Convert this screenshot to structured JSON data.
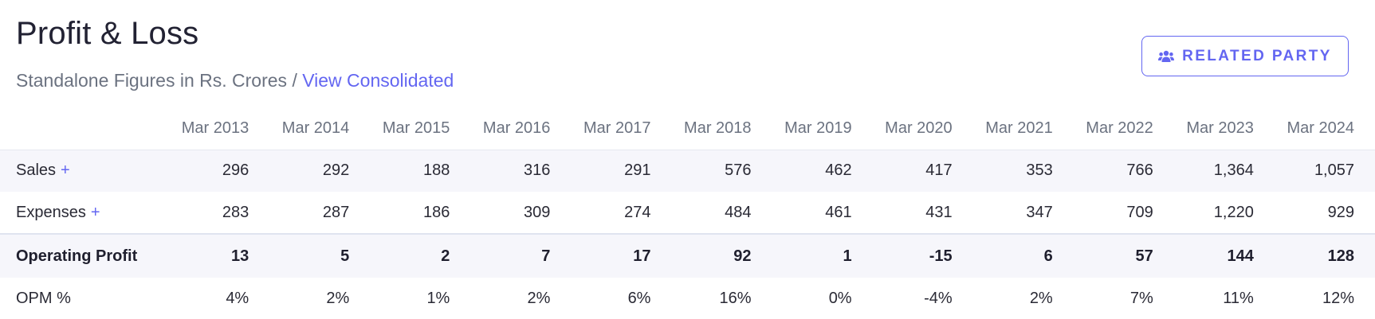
{
  "header": {
    "title": "Profit & Loss",
    "subtitle": "Standalone Figures in Rs. Crores",
    "separator": "/",
    "link_label": "View Consolidated",
    "button_label": "RELATED PARTY",
    "button_icon": "users-icon"
  },
  "colors": {
    "accent": "#6366f1",
    "row_shade": "#f6f6fb"
  },
  "table": {
    "columns": [
      "Mar 2013",
      "Mar 2014",
      "Mar 2015",
      "Mar 2016",
      "Mar 2017",
      "Mar 2018",
      "Mar 2019",
      "Mar 2020",
      "Mar 2021",
      "Mar 2022",
      "Mar 2023",
      "Mar 2024"
    ],
    "rows": [
      {
        "label": "Sales",
        "expand": "+",
        "values": [
          "296",
          "292",
          "188",
          "316",
          "291",
          "576",
          "462",
          "417",
          "353",
          "766",
          "1,364",
          "1,057"
        ]
      },
      {
        "label": "Expenses",
        "expand": "+",
        "values": [
          "283",
          "287",
          "186",
          "309",
          "274",
          "484",
          "461",
          "431",
          "347",
          "709",
          "1,220",
          "929"
        ]
      },
      {
        "label": "Operating Profit",
        "expand": "",
        "values": [
          "13",
          "5",
          "2",
          "7",
          "17",
          "92",
          "1",
          "-15",
          "6",
          "57",
          "144",
          "128"
        ]
      },
      {
        "label": "OPM %",
        "expand": "",
        "values": [
          "4%",
          "2%",
          "1%",
          "2%",
          "6%",
          "16%",
          "0%",
          "-4%",
          "2%",
          "7%",
          "11%",
          "12%"
        ]
      }
    ]
  }
}
